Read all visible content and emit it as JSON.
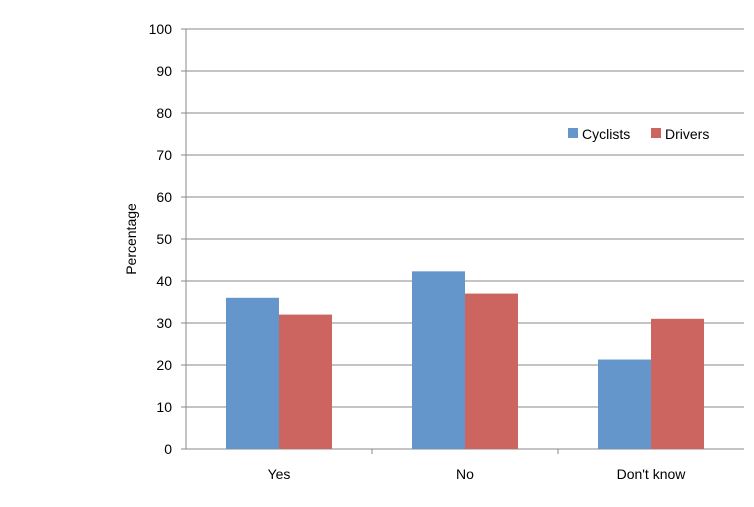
{
  "chart_data": {
    "type": "bar",
    "categories": [
      "Yes",
      "No",
      "Don't know"
    ],
    "series": [
      {
        "name": "Cyclists",
        "values": [
          36,
          42.3,
          21.3
        ],
        "color": "#6596CB"
      },
      {
        "name": "Drivers",
        "values": [
          32,
          37,
          31
        ],
        "color": "#CC6460"
      }
    ],
    "title": "",
    "xlabel": "",
    "ylabel": "Percentage",
    "ylim": [
      0,
      100
    ],
    "yticks": [
      0,
      10,
      20,
      30,
      40,
      50,
      60,
      70,
      80,
      90,
      100
    ],
    "grid": true,
    "legend": "top-right",
    "colors": {
      "grid": "#888888",
      "axis": "#888888"
    }
  }
}
